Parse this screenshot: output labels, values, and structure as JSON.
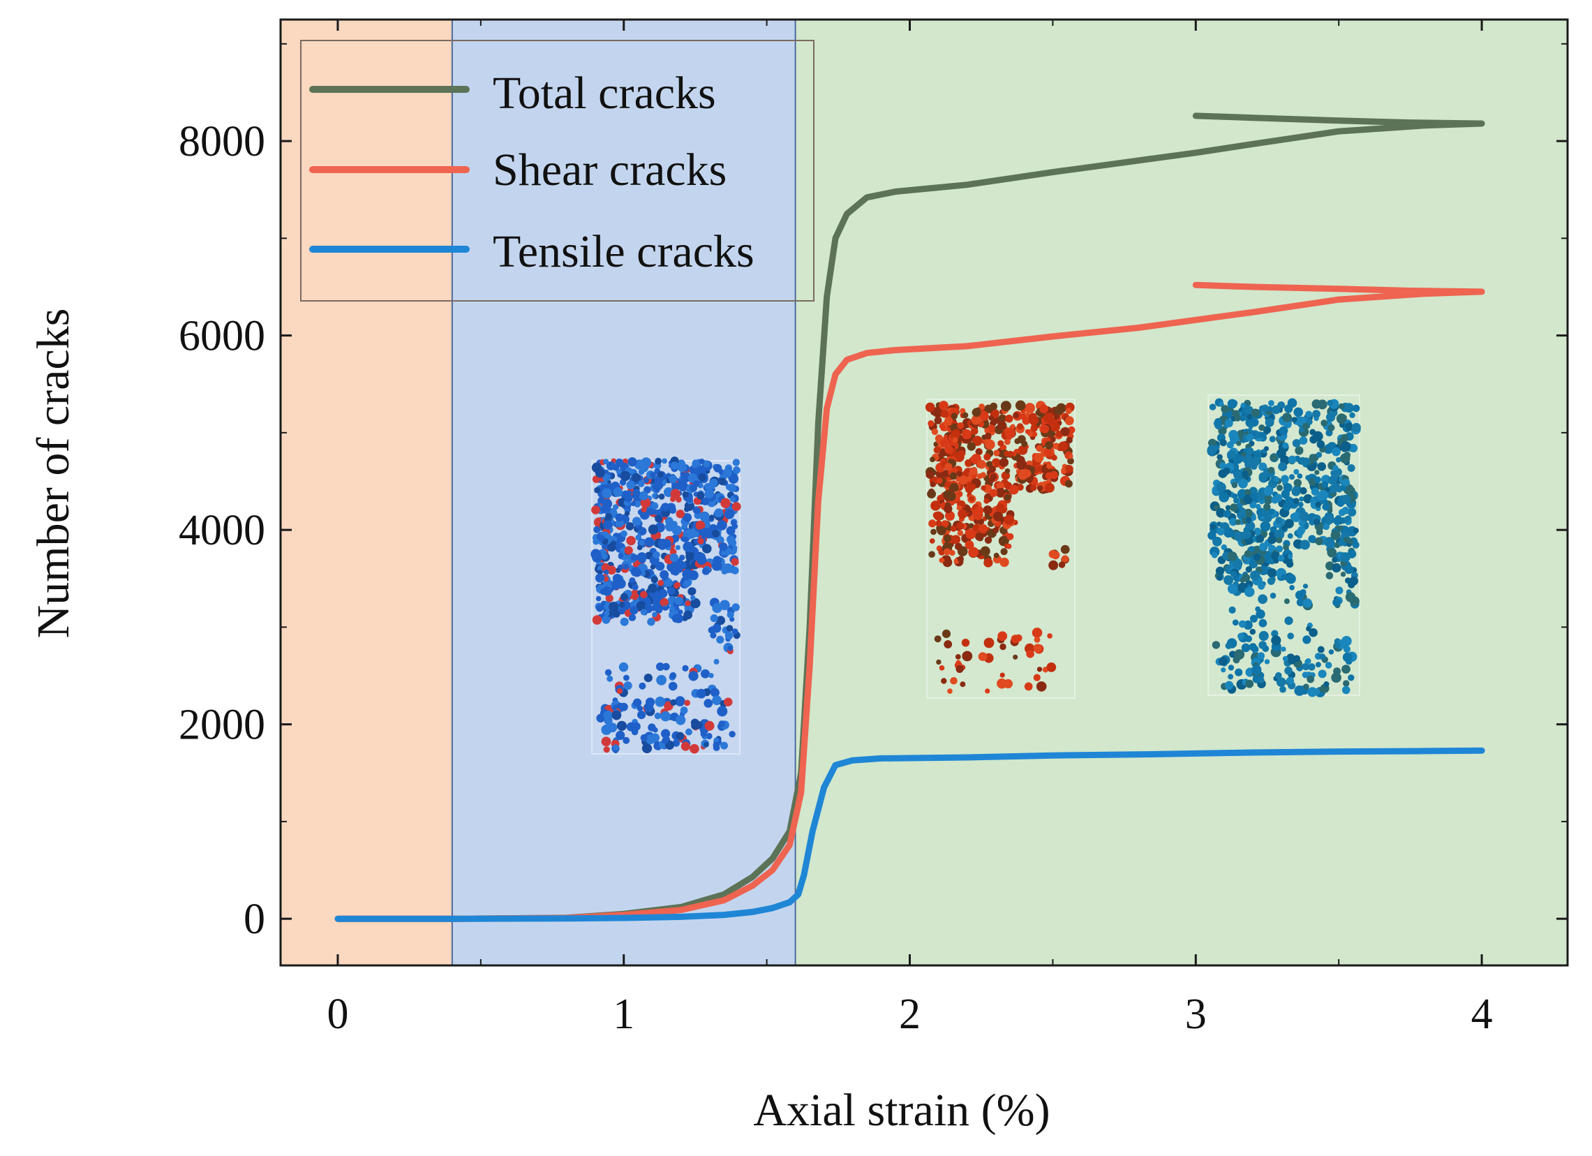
{
  "chart_data": {
    "type": "line",
    "xlabel": "Axial strain (%)",
    "ylabel": "Number of cracks",
    "xlim": [
      -0.2,
      4.3
    ],
    "ylim": [
      -480,
      9250
    ],
    "x_ticks": [
      0,
      1,
      2,
      3,
      4
    ],
    "y_ticks": [
      0,
      2000,
      4000,
      6000,
      8000
    ],
    "legend_position": "top-left",
    "stages": [
      {
        "name": "stage-1",
        "from": -0.2,
        "to": 0.4,
        "color": "#fbd8c0"
      },
      {
        "name": "stage-2",
        "from": 0.4,
        "to": 1.6,
        "color": "#c3d5ee"
      },
      {
        "name": "stage-3",
        "from": 1.6,
        "to": 4.3,
        "color": "#d2e7cc"
      }
    ],
    "series": [
      {
        "name": "Total cracks",
        "color": "#5d7357",
        "x": [
          0,
          0.4,
          0.8,
          1.0,
          1.2,
          1.35,
          1.45,
          1.52,
          1.58,
          1.62,
          1.65,
          1.68,
          1.71,
          1.74,
          1.78,
          1.85,
          1.95,
          2.2,
          2.5,
          2.8,
          3.0,
          3.2,
          3.5,
          3.8,
          4.0,
          3.75,
          3.5,
          3.2,
          3.0
        ],
        "y": [
          0,
          0,
          10,
          50,
          120,
          250,
          430,
          620,
          900,
          1500,
          3000,
          5100,
          6400,
          7000,
          7250,
          7420,
          7480,
          7550,
          7680,
          7800,
          7880,
          7970,
          8100,
          8160,
          8180,
          8190,
          8210,
          8240,
          8260
        ]
      },
      {
        "name": "Shear cracks",
        "color": "#ee6450",
        "x": [
          0,
          0.4,
          0.8,
          1.0,
          1.2,
          1.35,
          1.45,
          1.52,
          1.58,
          1.62,
          1.65,
          1.68,
          1.71,
          1.74,
          1.78,
          1.85,
          1.95,
          2.2,
          2.5,
          2.8,
          3.0,
          3.2,
          3.5,
          3.8,
          4.0,
          3.75,
          3.5,
          3.2,
          3.0
        ],
        "y": [
          0,
          0,
          8,
          40,
          90,
          190,
          340,
          500,
          760,
          1300,
          2600,
          4300,
          5250,
          5600,
          5750,
          5820,
          5850,
          5890,
          5990,
          6080,
          6160,
          6240,
          6370,
          6430,
          6450,
          6460,
          6480,
          6500,
          6520
        ]
      },
      {
        "name": "Tensile cracks",
        "color": "#1f86d6",
        "x": [
          0,
          0.4,
          0.8,
          1.0,
          1.2,
          1.35,
          1.45,
          1.52,
          1.58,
          1.61,
          1.63,
          1.66,
          1.7,
          1.74,
          1.8,
          1.9,
          2.2,
          2.5,
          2.8,
          3.0,
          3.2,
          3.5,
          3.8,
          4.0
        ],
        "y": [
          0,
          0,
          3,
          8,
          20,
          40,
          70,
          110,
          170,
          250,
          450,
          900,
          1350,
          1580,
          1630,
          1650,
          1660,
          1680,
          1690,
          1700,
          1710,
          1720,
          1725,
          1730
        ]
      }
    ]
  }
}
